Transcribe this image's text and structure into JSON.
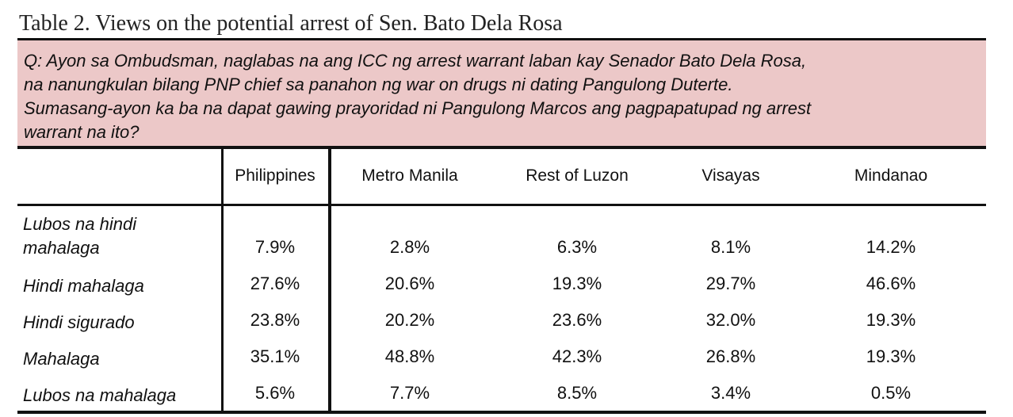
{
  "title": "Table 2. Views on the potential arrest of Sen. Bato Dela Rosa",
  "question": [
    "Q: Ayon sa Ombudsman, naglabas na ang ICC ng arrest warrant laban kay Senador Bato Dela Rosa,",
    "na nanungkulan bilang PNP chief sa panahon ng war on drugs ni dating Pangulong Duterte.",
    "Sumasang-ayon ka ba na dapat gawing prayoridad ni Pangulong Marcos ang pagpapatupad ng arrest",
    "warrant na ito?"
  ],
  "columns": [
    "Philippines",
    "Metro Manila",
    "Rest of Luzon",
    "Visayas",
    "Mindanao"
  ],
  "rows": [
    {
      "label_lines": [
        "Lubos na hindi",
        "mahalaga"
      ],
      "values": [
        "7.9%",
        "2.8%",
        "6.3%",
        "8.1%",
        "14.2%"
      ]
    },
    {
      "label_lines": [
        "Hindi mahalaga"
      ],
      "values": [
        "27.6%",
        "20.6%",
        "19.3%",
        "29.7%",
        "46.6%"
      ]
    },
    {
      "label_lines": [
        "Hindi sigurado"
      ],
      "values": [
        "23.8%",
        "20.2%",
        "23.6%",
        "32.0%",
        "19.3%"
      ]
    },
    {
      "label_lines": [
        "Mahalaga"
      ],
      "values": [
        "35.1%",
        "48.8%",
        "42.3%",
        "26.8%",
        "19.3%"
      ]
    },
    {
      "label_lines": [
        "Lubos na mahalaga"
      ],
      "values": [
        "5.6%",
        "7.7%",
        "8.5%",
        "3.4%",
        "0.5%"
      ]
    }
  ]
}
